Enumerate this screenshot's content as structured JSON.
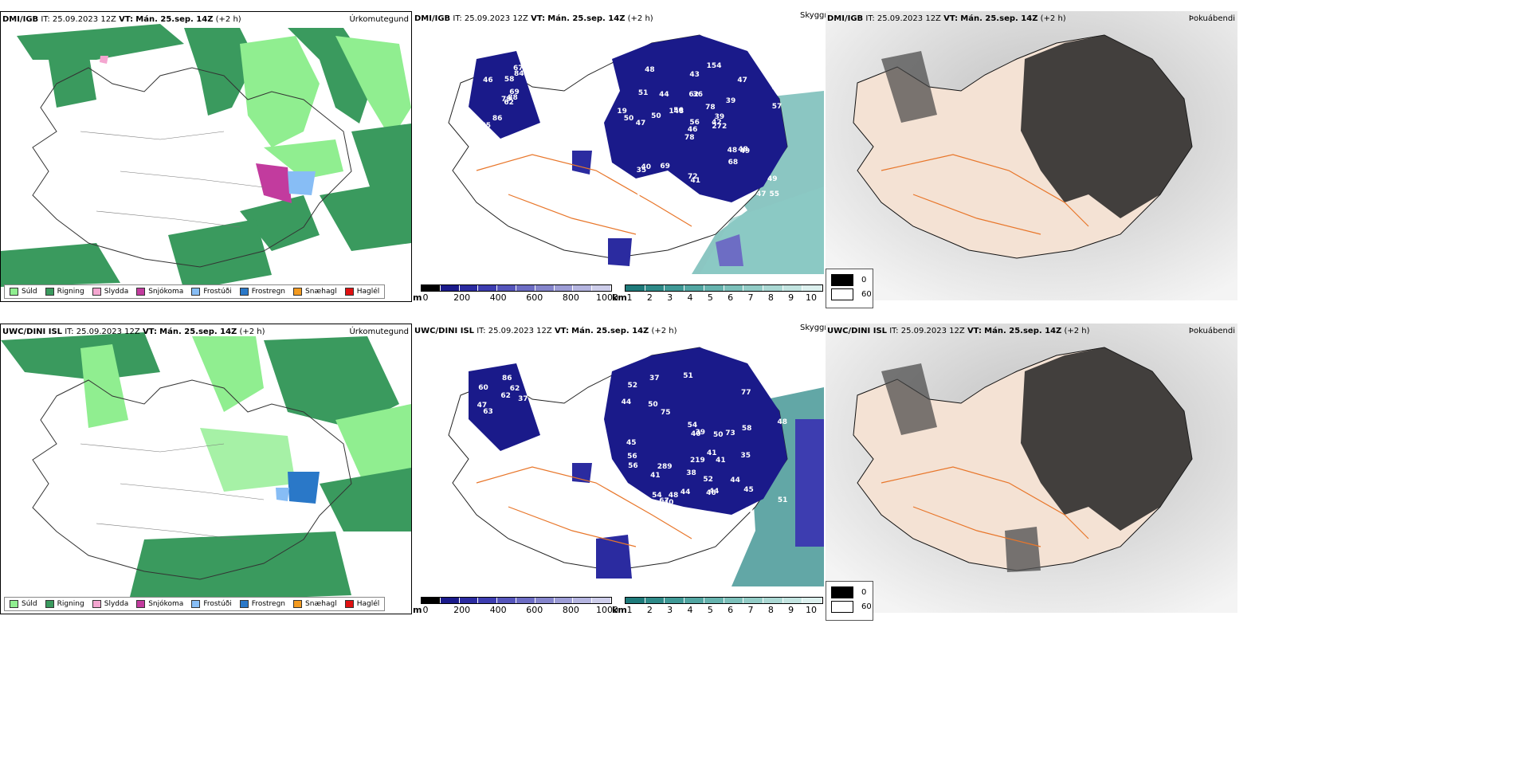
{
  "rows": [
    {
      "model": "DMI/IGB",
      "it_label": "IT:",
      "it_value": "25.09.2023 12Z",
      "vt_label": "VT:",
      "vt_value": "Mán. 25.sep. 14Z",
      "lead": "(+2 h)",
      "vis_labels": [
        "62",
        "46",
        "79",
        "65",
        "69",
        "86",
        "67",
        "58",
        "84",
        "88",
        "48",
        "55",
        "47",
        "40",
        "78",
        "39",
        "43",
        "62",
        "78",
        "40",
        "56",
        "42",
        "43",
        "36",
        "39",
        "49",
        "51",
        "43",
        "50",
        "48",
        "57",
        "46",
        "72",
        "56",
        "44",
        "47",
        "69",
        "47",
        "49",
        "48",
        "154",
        "148",
        "50",
        "68",
        "69",
        "19",
        "42",
        "84",
        "41",
        "272",
        "35"
      ]
    },
    {
      "model": "UWC/DINI ISL",
      "it_label": "IT:",
      "it_value": "25.09.2023 12Z",
      "vt_label": "VT:",
      "vt_value": "Mán. 25.sep. 14Z",
      "lead": "(+2 h)",
      "vis_labels": [
        "47",
        "86",
        "37",
        "73",
        "60",
        "57",
        "63",
        "62",
        "62",
        "49",
        "39",
        "35",
        "51",
        "44",
        "50",
        "41",
        "44",
        "45",
        "41",
        "38",
        "44",
        "45",
        "44",
        "54",
        "54",
        "40",
        "41",
        "37",
        "40",
        "46",
        "56",
        "47",
        "50",
        "54",
        "67",
        "56",
        "58",
        "52",
        "48",
        "75",
        "52",
        "73",
        "51",
        "48",
        "219",
        "289",
        "77",
        "39",
        "44"
      ]
    }
  ],
  "panel_titles": {
    "precip": "Úrkomutegund",
    "vis": "Skyggni",
    "fog": "Þokuábendi"
  },
  "precip_legend": [
    {
      "label": "Súld",
      "color": "#90ee90"
    },
    {
      "label": "Rigning",
      "color": "#3a9a5e"
    },
    {
      "label": "Slydda",
      "color": "#f4a6d0"
    },
    {
      "label": "Snjókoma",
      "color": "#c23b9e"
    },
    {
      "label": "Frostúði",
      "color": "#87bdf5"
    },
    {
      "label": "Frostregn",
      "color": "#2a78c8"
    },
    {
      "label": "Snæhagl",
      "color": "#f39a1f"
    },
    {
      "label": "Haglél",
      "color": "#e01010"
    }
  ],
  "cloud_base_scale": {
    "unit": "m",
    "ticks": [
      "0",
      "200",
      "400",
      "600",
      "800",
      "1000"
    ],
    "colors": [
      "#000000",
      "#1a1a8a",
      "#2b2ba0",
      "#3d3db0",
      "#5555bb",
      "#6d6dc4",
      "#8585cc",
      "#9d9dd6",
      "#b5b5e0",
      "#cdcdea"
    ]
  },
  "visibility_scale": {
    "unit": "km",
    "ticks": [
      "1",
      "2",
      "3",
      "4",
      "5",
      "6",
      "7",
      "8",
      "9",
      "10"
    ],
    "colors": [
      "#1e7a7a",
      "#2e8a88",
      "#3f9996",
      "#52a6a2",
      "#66b3ae",
      "#7cc0ba",
      "#92ccc6",
      "#aad8d3",
      "#c2e4e0",
      "#dcf0ee"
    ]
  },
  "fog_legend": [
    {
      "label": "0",
      "color": "#000000"
    },
    {
      "label": "60",
      "color": "#ffffff"
    }
  ]
}
